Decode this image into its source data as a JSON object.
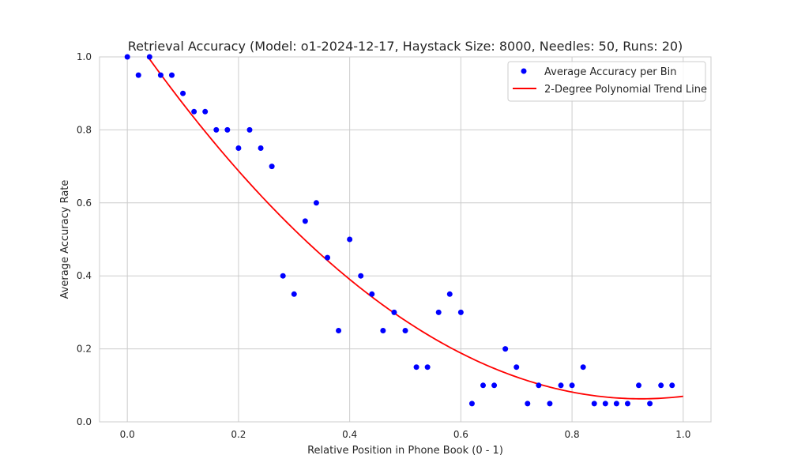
{
  "chart_data": {
    "type": "scatter",
    "title": "Retrieval Accuracy (Model: o1-2024-12-17, Haystack Size: 8000, Needles: 50, Runs: 20)",
    "xlabel": "Relative Position in Phone Book (0 - 1)",
    "ylabel": "Average Accuracy Rate",
    "xlim": [
      -0.05,
      1.05
    ],
    "ylim": [
      0.0,
      1.0
    ],
    "xticks": [
      "0.0",
      "0.2",
      "0.4",
      "0.6",
      "0.8",
      "1.0"
    ],
    "yticks": [
      "0.0",
      "0.2",
      "0.4",
      "0.6",
      "0.8",
      "1.0"
    ],
    "grid": true,
    "legend_placement": "top-right",
    "series": [
      {
        "name": "Average Accuracy per Bin",
        "kind": "scatter",
        "color": "#0000ff",
        "x": [
          0.0,
          0.02,
          0.04,
          0.06,
          0.08,
          0.1,
          0.12,
          0.14,
          0.16,
          0.18,
          0.2,
          0.22,
          0.24,
          0.26,
          0.28,
          0.3,
          0.32,
          0.34,
          0.36,
          0.38,
          0.4,
          0.42,
          0.44,
          0.46,
          0.48,
          0.5,
          0.52,
          0.54,
          0.56,
          0.58,
          0.6,
          0.62,
          0.64,
          0.66,
          0.68,
          0.7,
          0.72,
          0.74,
          0.76,
          0.78,
          0.8,
          0.82,
          0.84,
          0.86,
          0.88,
          0.9,
          0.92,
          0.94,
          0.96,
          0.98
        ],
        "y": [
          1.0,
          0.95,
          1.0,
          0.95,
          0.95,
          0.9,
          0.85,
          0.85,
          0.8,
          0.8,
          0.75,
          0.8,
          0.75,
          0.7,
          0.4,
          0.35,
          0.55,
          0.6,
          0.45,
          0.25,
          0.5,
          0.4,
          0.35,
          0.25,
          0.3,
          0.25,
          0.15,
          0.15,
          0.3,
          0.35,
          0.3,
          0.05,
          0.1,
          0.1,
          0.2,
          0.15,
          0.05,
          0.1,
          0.05,
          0.1,
          0.1,
          0.15,
          0.05,
          0.05,
          0.05,
          0.05,
          0.1,
          0.05,
          0.1,
          0.1
        ]
      },
      {
        "name": "2-Degree Polynomial Trend Line",
        "kind": "line",
        "color": "#ff0000",
        "polynomial_coefficients": [
          1.08,
          -2.2,
          1.19
        ],
        "x_range": [
          0.0,
          1.0
        ]
      }
    ]
  }
}
